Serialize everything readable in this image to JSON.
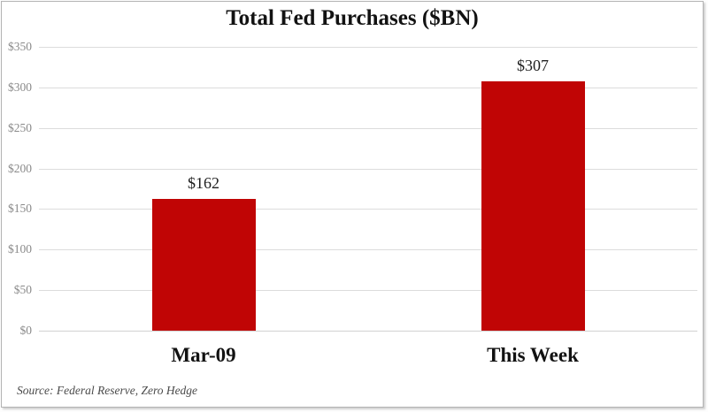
{
  "chart_data": {
    "type": "bar",
    "title": "Total Fed Purchases ($BN)",
    "categories": [
      "Mar-09",
      "This Week"
    ],
    "values": [
      162,
      307
    ],
    "value_labels": [
      "$162",
      "$307"
    ],
    "ylim": [
      0,
      350
    ],
    "ytick_values": [
      0,
      50,
      100,
      150,
      200,
      250,
      300,
      350
    ],
    "ytick_labels": [
      "$0",
      "$50",
      "$100",
      "$150",
      "$200",
      "$250",
      "$300",
      "$350"
    ],
    "grid": "horizontal",
    "legend": "none",
    "bar_color": "#c00505",
    "source": "Source: Federal Reserve, Zero Hedge"
  }
}
